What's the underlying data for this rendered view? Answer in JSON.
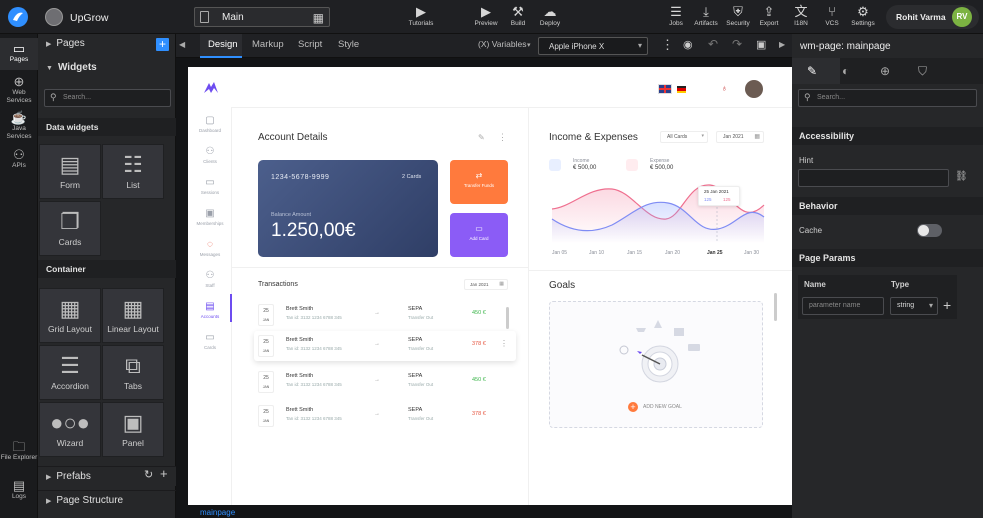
{
  "topbar": {
    "app_name": "UpGrow",
    "page_name": "Main",
    "tools_center": [
      {
        "icon": "youtube-icon",
        "label": "Tutorials"
      },
      {
        "icon": "play-icon",
        "label": "Preview"
      },
      {
        "icon": "build-icon",
        "label": "Build"
      },
      {
        "icon": "deploy-icon",
        "label": "Deploy"
      }
    ],
    "tools_right": [
      {
        "icon": "jobs-icon",
        "label": "Jobs"
      },
      {
        "icon": "artifacts-icon",
        "label": "Artifacts"
      },
      {
        "icon": "security-icon",
        "label": "Security"
      },
      {
        "icon": "export-icon",
        "label": "Export"
      },
      {
        "icon": "i18n-icon",
        "label": "I18N"
      },
      {
        "icon": "vcs-icon",
        "label": "VCS"
      },
      {
        "icon": "settings-icon",
        "label": "Settings"
      }
    ],
    "user_name": "Rohit Varma",
    "user_initials": "RV"
  },
  "rail": [
    {
      "icon": "pages-icon",
      "label": "Pages",
      "active": true
    },
    {
      "icon": "web-services-icon",
      "label": "Web Services"
    },
    {
      "icon": "java-services-icon",
      "label": "Java Services"
    },
    {
      "icon": "apis-icon",
      "label": "APIs"
    },
    {
      "icon": "file-explorer-icon",
      "label": "File Explorer"
    },
    {
      "icon": "logs-icon",
      "label": "Logs"
    }
  ],
  "panel": {
    "pages_label": "Pages",
    "widgets_label": "Widgets",
    "search_placeholder": "Search...",
    "data_widgets_label": "Data widgets",
    "container_label": "Container",
    "prefabs_label": "Prefabs",
    "page_structure_label": "Page Structure",
    "data_widgets": [
      "Form",
      "List",
      "Cards"
    ],
    "containers": [
      "Grid Layout",
      "Linear Layout",
      "Accordion",
      "Tabs",
      "Wizard",
      "Panel"
    ]
  },
  "canvas": {
    "tabs": [
      "Design",
      "Markup",
      "Script",
      "Style"
    ],
    "active_tab": "Design",
    "variables_label": "(X) Variables",
    "device": "Apple iPhone X",
    "breadcrumb": "mainpage"
  },
  "right_panel": {
    "title": "wm-page: mainpage",
    "search_placeholder": "Search...",
    "accessibility_label": "Accessibility",
    "hint_label": "Hint",
    "behavior_label": "Behavior",
    "cache_label": "Cache",
    "page_params_label": "Page Params",
    "name_col": "Name",
    "type_col": "Type",
    "param_placeholder": "parameter name",
    "type_value": "string"
  },
  "preview": {
    "nav": [
      "Dashboard",
      "Clients",
      "Sessions",
      "Memberships",
      "Messages",
      "Staff",
      "Accounts",
      "Cards"
    ],
    "account_title": "Account Details",
    "card_number": "1234-5678-9999",
    "cards_count": "2 Cards",
    "balance_label": "Balance Amount",
    "balance_value": "1.250,00€",
    "transfer_label": "Transfer Funds",
    "add_card_label": "Add Card",
    "income_title": "Income & Expenses",
    "all_cards": "All Cards",
    "period": "Jan 2021",
    "income_label": "Income",
    "income_value": "€ 500,00",
    "expense_label": "Expense",
    "expense_value": "€ 500,00",
    "tooltip_date": "25 Jan 2021",
    "tooltip_v1": "125",
    "tooltip_v2": "125",
    "x_ticks": [
      "Jan 05",
      "Jan 10",
      "Jan 15",
      "Jan 20",
      "Jan 25",
      "Jan 30"
    ],
    "transactions_title": "Transactions",
    "transactions_period": "Jan 2021",
    "transactions": [
      {
        "day": "25",
        "month": "JAN",
        "name": "Brett Smith",
        "account": "Tan id: 3132 1234 6788 345",
        "type": "SEPA",
        "sub": "Transfer Out",
        "amount": "450 €",
        "color": "#3bb54a"
      },
      {
        "day": "25",
        "month": "JAN",
        "name": "Brett Smith",
        "account": "Tan id: 3132 1234 6788 345",
        "type": "SEPA",
        "sub": "Transfer Out",
        "amount": "378 €",
        "color": "#e5533d"
      },
      {
        "day": "25",
        "month": "JAN",
        "name": "Brett Smith",
        "account": "Tan id: 3132 1234 6788 345",
        "type": "SEPA",
        "sub": "Transfer Out",
        "amount": "450 €",
        "color": "#3bb54a"
      },
      {
        "day": "25",
        "month": "JAN",
        "name": "Brett Smith",
        "account": "Tan id: 3132 1234 6788 345",
        "type": "SEPA",
        "sub": "Transfer Out",
        "amount": "378 €",
        "color": "#e5533d"
      }
    ],
    "goals_title": "Goals",
    "add_goal": "ADD NEW GOAL"
  },
  "colors": {
    "accent": "#2f8fff",
    "card_dark": "#3e4f7a",
    "transfer": "#ff7a3d",
    "addcard": "#8b5cf6"
  }
}
